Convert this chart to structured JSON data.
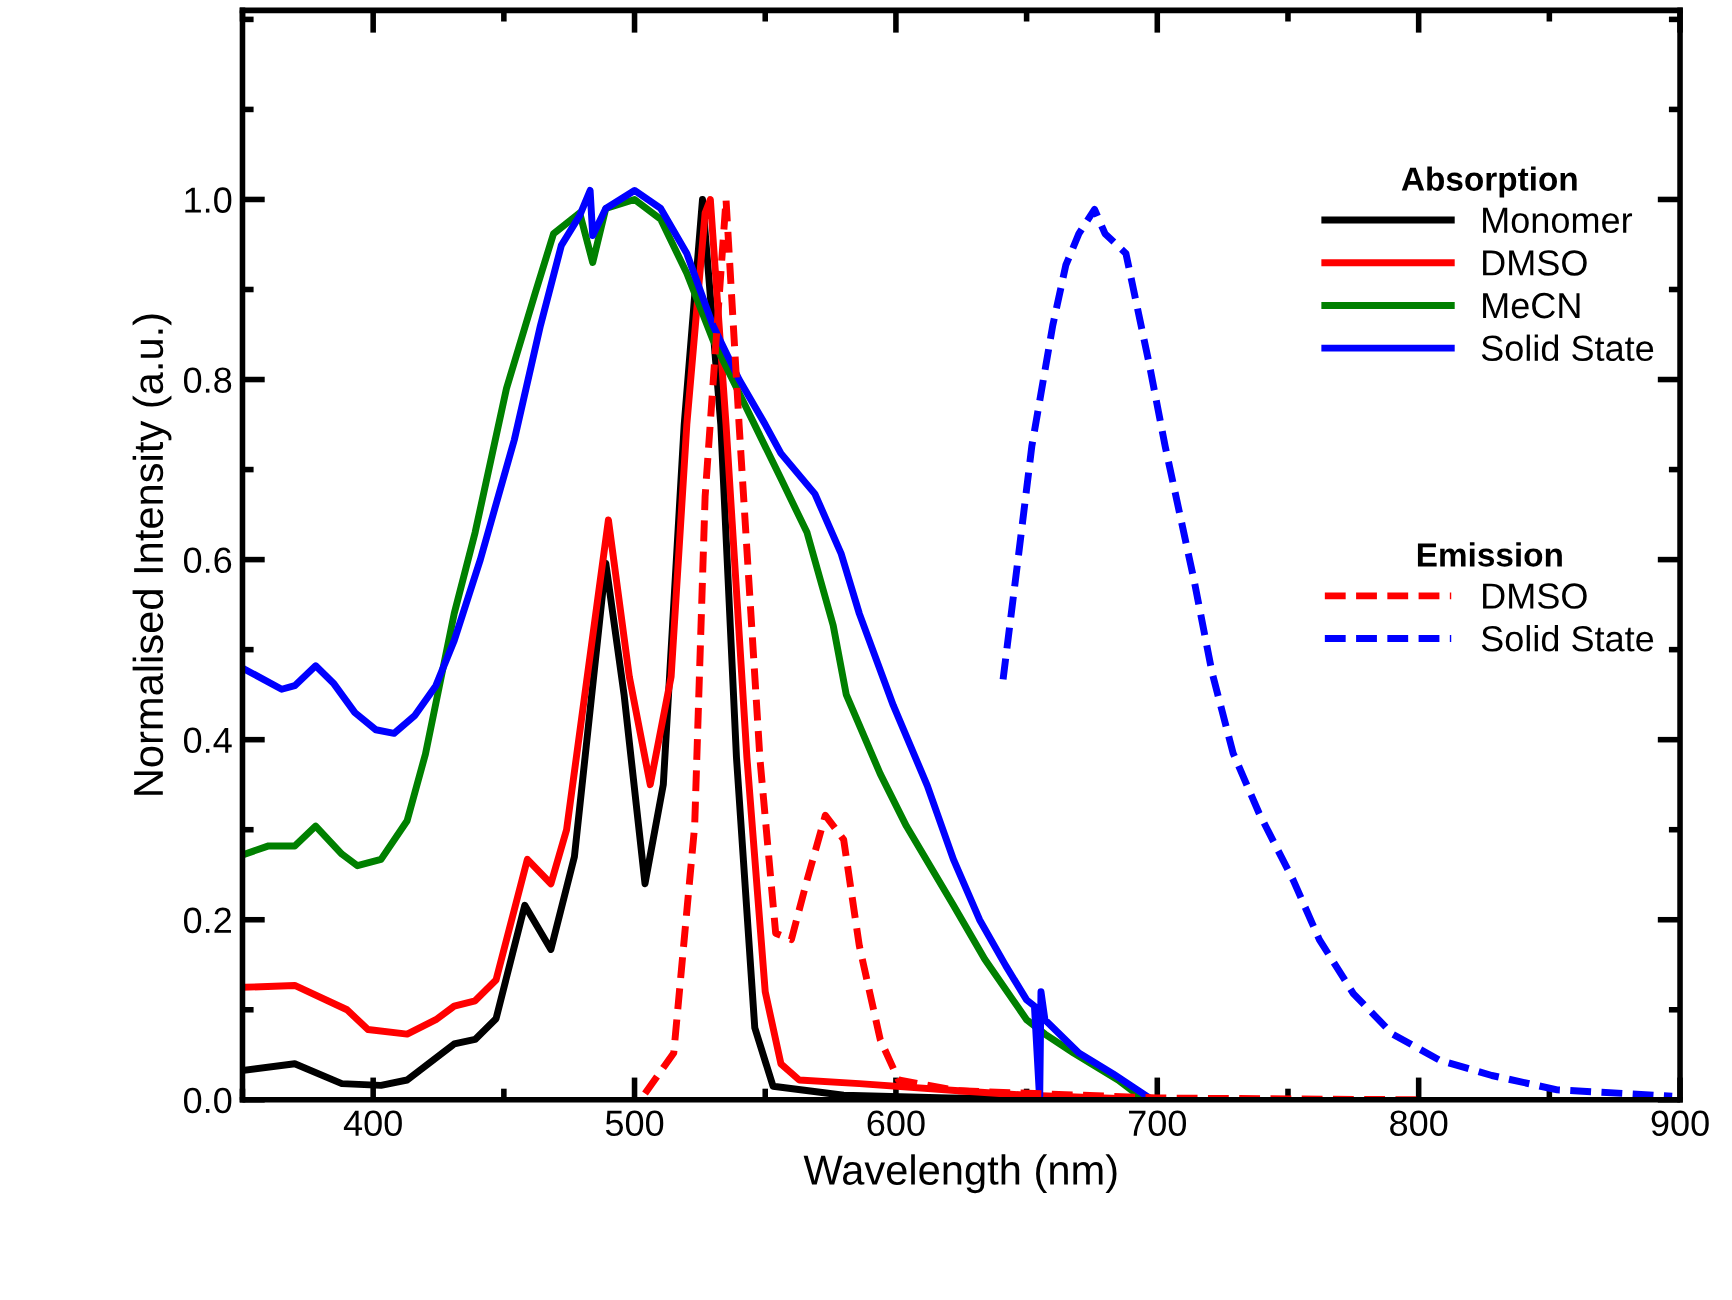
{
  "chart_data": {
    "type": "line",
    "xlabel": "Wavelength (nm)",
    "ylabel": "Normalised Intensity (a.u.)",
    "legend_title": "Absorption",
    "annotations": [
      "Emission"
    ],
    "xlim": [
      350,
      900
    ],
    "xticks": [
      400,
      500,
      600,
      700,
      800,
      900
    ],
    "ylim": [
      0,
      1.21
    ],
    "yticks": [
      {
        "value": 0,
        "label": "0.0"
      },
      0.2,
      0.4,
      0.6,
      0.8,
      {
        "value": 1,
        "label": "1.0"
      }
    ],
    "grid": false,
    "legend": "top right",
    "series": [
      {
        "name": "Monomer",
        "color": "#000000",
        "line_style": "solid",
        "x": [
          351,
          370,
          388,
          403,
          413,
          431,
          439,
          447,
          458,
          468,
          477,
          489,
          496,
          504,
          511,
          519,
          526,
          533,
          539,
          546,
          553,
          580,
          620,
          700
        ],
        "values": [
          0.033,
          0.04,
          0.018,
          0.016,
          0.022,
          0.062,
          0.067,
          0.09,
          0.216,
          0.167,
          0.27,
          0.596,
          0.45,
          0.24,
          0.35,
          0.75,
          1.0,
          0.75,
          0.38,
          0.08,
          0.015,
          0.005,
          0.002,
          0
        ]
      },
      {
        "name": "DMSO",
        "color": "#ff0000",
        "line_style": "solid",
        "x": [
          351,
          370,
          390,
          398,
          413,
          424,
          431,
          439,
          447,
          459,
          468,
          474,
          490,
          498,
          506,
          514,
          520,
          527,
          529,
          535,
          543,
          550,
          556,
          563,
          586,
          624,
          650,
          700
        ],
        "values": [
          0.125,
          0.127,
          0.1,
          0.078,
          0.073,
          0.089,
          0.104,
          0.11,
          0.133,
          0.267,
          0.24,
          0.3,
          0.644,
          0.47,
          0.35,
          0.47,
          0.75,
          0.985,
          1.0,
          0.75,
          0.38,
          0.12,
          0.04,
          0.022,
          0.018,
          0.01,
          0.005,
          0
        ]
      },
      {
        "name": "MeCN",
        "color": "#008000",
        "line_style": "solid",
        "x": [
          351,
          360,
          370,
          378,
          388,
          394,
          403,
          413,
          420,
          431,
          439,
          451,
          462,
          469,
          479,
          484,
          489,
          500,
          510,
          520,
          530,
          540,
          556,
          566,
          576,
          581,
          594,
          604,
          622,
          634,
          650,
          657,
          668,
          685,
          695
        ],
        "values": [
          0.273,
          0.282,
          0.282,
          0.304,
          0.273,
          0.26,
          0.267,
          0.31,
          0.384,
          0.54,
          0.63,
          0.79,
          0.896,
          0.962,
          0.985,
          0.93,
          0.99,
          1.0,
          0.978,
          0.918,
          0.844,
          0.785,
          0.69,
          0.63,
          0.527,
          0.45,
          0.362,
          0.304,
          0.216,
          0.156,
          0.089,
          0.073,
          0.052,
          0.022,
          0
        ]
      },
      {
        "name": "Solid State",
        "color": "#0000ff",
        "line_style": "solid",
        "x": [
          351,
          365,
          370,
          378,
          385,
          393,
          401,
          408,
          416,
          424,
          431,
          441,
          454,
          464,
          472,
          479,
          483,
          484,
          489,
          500,
          510,
          520,
          530,
          540,
          550,
          556,
          569,
          579,
          586,
          599,
          612,
          622,
          632,
          642,
          650,
          653,
          655,
          655.5,
          657,
          670,
          683,
          696
        ],
        "values": [
          0.478,
          0.456,
          0.46,
          0.482,
          0.462,
          0.43,
          0.411,
          0.407,
          0.427,
          0.46,
          0.51,
          0.6,
          0.733,
          0.86,
          0.949,
          0.982,
          1.01,
          0.96,
          0.99,
          1.01,
          0.99,
          0.94,
          0.86,
          0.8,
          0.75,
          0.718,
          0.673,
          0.607,
          0.54,
          0.438,
          0.349,
          0.267,
          0.2,
          0.149,
          0.111,
          0.104,
          0,
          0.12,
          0.089,
          0.052,
          0.029,
          0.004
        ]
      },
      {
        "name": "DMSO",
        "color": "#ff0000",
        "line_style": "dashed",
        "x": [
          504,
          515,
          523,
          527,
          535,
          540,
          548,
          554,
          560,
          566,
          573,
          580,
          586,
          594,
          601,
          624,
          700,
          800
        ],
        "values": [
          0.007,
          0.052,
          0.304,
          0.67,
          1.0,
          0.75,
          0.378,
          0.185,
          0.178,
          0.244,
          0.316,
          0.289,
          0.171,
          0.067,
          0.022,
          0.01,
          0.002,
          0
        ]
      },
      {
        "name": "Solid State",
        "color": "#0000ff",
        "line_style": "dashed",
        "x": [
          641,
          647,
          652,
          660,
          665,
          670,
          676,
          680,
          688,
          697,
          703,
          714,
          721,
          729,
          739,
          752,
          762,
          775,
          790,
          808,
          828,
          853,
          879,
          897
        ],
        "values": [
          0.467,
          0.607,
          0.726,
          0.86,
          0.927,
          0.962,
          0.989,
          0.962,
          0.94,
          0.816,
          0.726,
          0.578,
          0.474,
          0.385,
          0.318,
          0.244,
          0.178,
          0.118,
          0.073,
          0.044,
          0.027,
          0.011,
          0.007,
          0.004
        ]
      }
    ]
  }
}
